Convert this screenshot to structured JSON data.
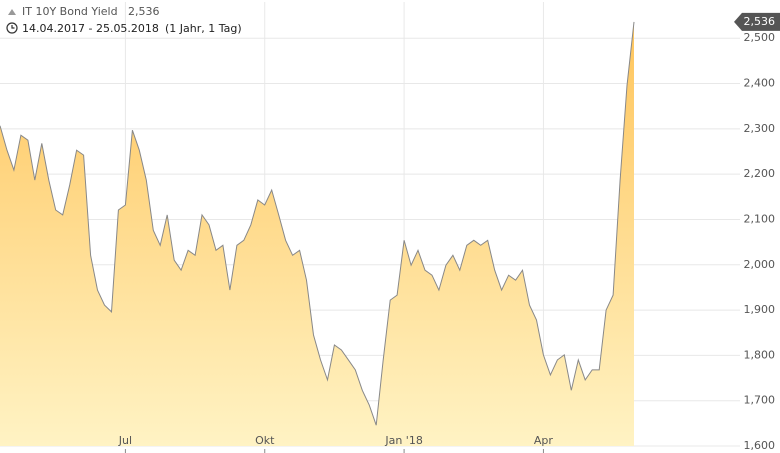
{
  "chart_data": {
    "type": "area",
    "title": "IT 10Y Bond Yield",
    "last_value": {
      "value": 2.536,
      "label": "2,536"
    },
    "subtitle": "14.04.2017 - 25.05.2018",
    "period": "(1 Jahr, 1 Tag)",
    "categories": [
      null,
      null,
      null,
      null,
      null,
      null,
      null,
      null,
      null,
      null,
      null,
      null,
      null,
      null,
      null,
      null,
      null,
      null,
      "Jul",
      null,
      null,
      null,
      null,
      null,
      null,
      null,
      null,
      null,
      null,
      null,
      null,
      null,
      null,
      null,
      null,
      null,
      null,
      null,
      "Okt",
      null,
      null,
      null,
      null,
      null,
      null,
      null,
      null,
      null,
      null,
      null,
      null,
      null,
      null,
      null,
      null,
      null,
      null,
      null,
      "Jan '18",
      null,
      null,
      null,
      null,
      null,
      null,
      null,
      null,
      null,
      null,
      null,
      null,
      null,
      null,
      null,
      null,
      null,
      null,
      null,
      "Apr",
      null,
      null,
      null,
      null,
      null,
      null,
      null,
      null,
      null,
      null,
      null,
      null,
      null
    ],
    "values": [
      2.307,
      2.253,
      2.209,
      2.286,
      2.275,
      2.187,
      2.268,
      2.187,
      2.121,
      2.11,
      2.176,
      2.253,
      2.242,
      2.021,
      1.944,
      1.911,
      1.896,
      2.121,
      2.132,
      2.297,
      2.253,
      2.187,
      2.076,
      2.043,
      2.11,
      2.01,
      1.988,
      2.032,
      2.021,
      2.11,
      2.088,
      2.032,
      2.043,
      1.944,
      2.043,
      2.054,
      2.088,
      2.143,
      2.132,
      2.165,
      2.11,
      2.054,
      2.021,
      2.032,
      1.966,
      1.845,
      1.79,
      1.746,
      1.823,
      1.812,
      1.79,
      1.768,
      1.723,
      1.69,
      1.646,
      1.79,
      1.922,
      1.933,
      2.054,
      1.999,
      2.032,
      1.988,
      1.977,
      1.944,
      1.999,
      2.021,
      1.988,
      2.043,
      2.054,
      2.043,
      2.054,
      1.988,
      1.944,
      1.977,
      1.966,
      1.988,
      1.911,
      1.878,
      1.801,
      1.757,
      1.79,
      1.801,
      1.723,
      1.79,
      1.746,
      1.768,
      1.768,
      1.9,
      1.933,
      2.187,
      2.396,
      2.536
    ],
    "line_color": "#888888",
    "fill_top": "#ffc55c",
    "fill_bottom": "#fff3c4",
    "ylim": [
      1.6,
      2.58
    ],
    "yticks": [
      {
        "value": 1.6,
        "label": "1,600"
      },
      {
        "value": 1.7,
        "label": "1,700"
      },
      {
        "value": 1.8,
        "label": "1,800"
      },
      {
        "value": 1.9,
        "label": "1,900"
      },
      {
        "value": 2.0,
        "label": "2,000"
      },
      {
        "value": 2.1,
        "label": "2,100"
      },
      {
        "value": 2.2,
        "label": "2,200"
      },
      {
        "value": 2.3,
        "label": "2,300"
      },
      {
        "value": 2.4,
        "label": "2,400"
      },
      {
        "value": 2.5,
        "label": "2,500"
      }
    ],
    "grid": true
  }
}
